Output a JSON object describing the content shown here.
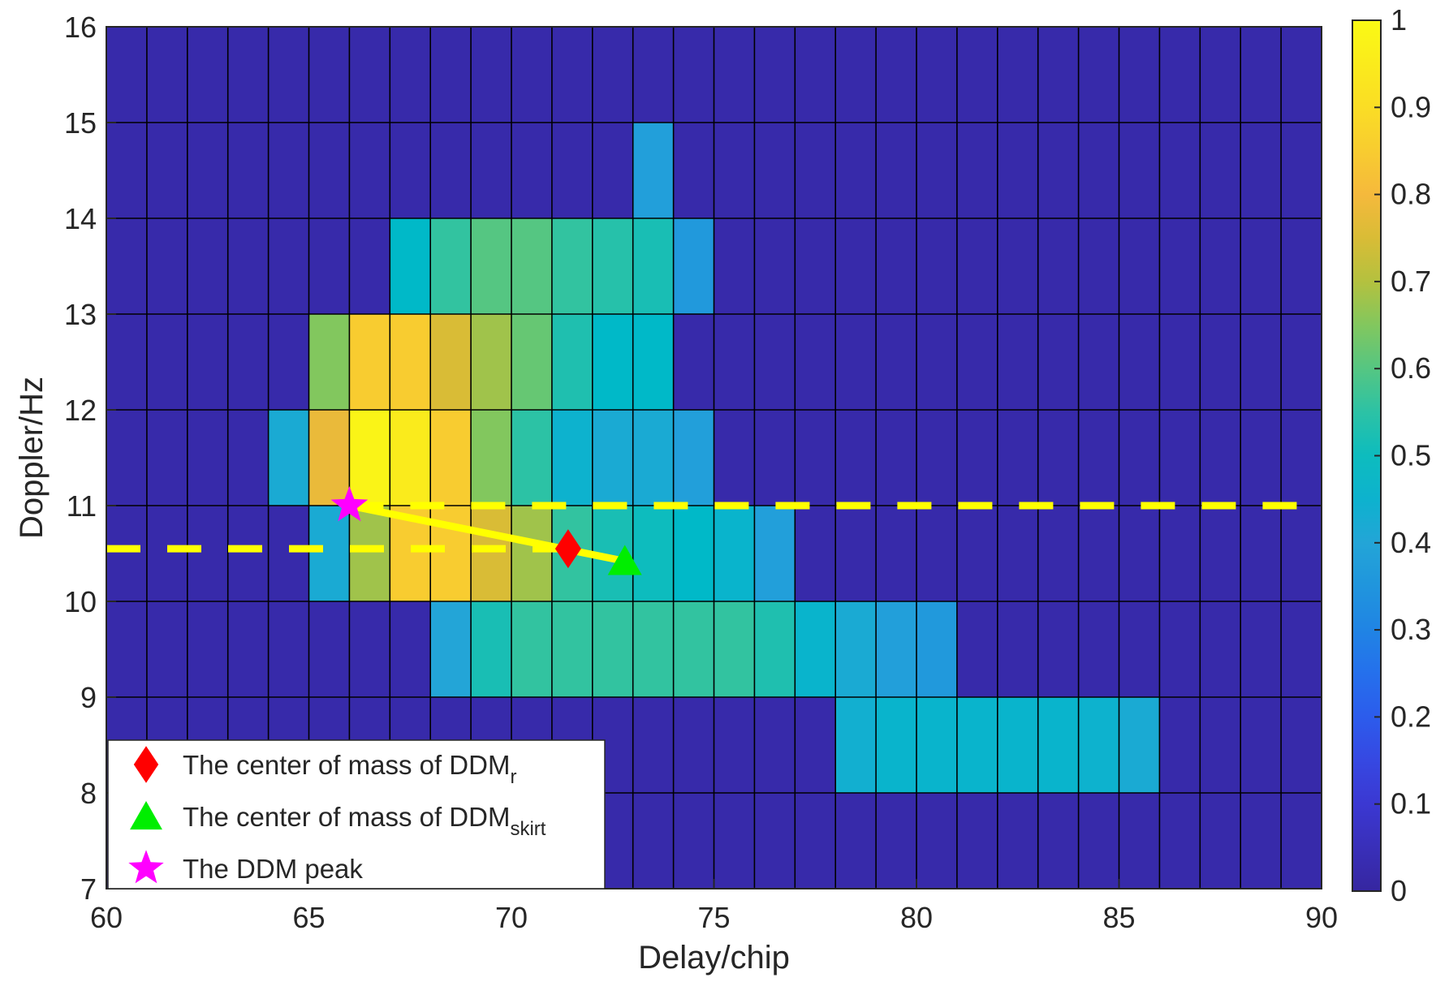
{
  "chart_data": {
    "type": "heatmap",
    "title": "",
    "xlabel": "Delay/chip",
    "ylabel": "Doppler/Hz",
    "xlim": [
      60,
      90
    ],
    "ylim": [
      7,
      16
    ],
    "xticks": [
      "60",
      "65",
      "70",
      "75",
      "80",
      "85",
      "90"
    ],
    "yticks": [
      "7",
      "8",
      "9",
      "10",
      "11",
      "12",
      "13",
      "14",
      "15",
      "16"
    ],
    "colorbar": {
      "range": [
        0,
        1
      ],
      "ticks": [
        "0",
        "0.1",
        "0.2",
        "0.3",
        "0.4",
        "0.5",
        "0.6",
        "0.7",
        "0.8",
        "0.9",
        "1"
      ],
      "colormap": "parula"
    },
    "grid": true,
    "cells": [
      {
        "row": 14,
        "values": {
          "73": 0.38
        }
      },
      {
        "row": 13,
        "values": {
          "67": 0.48,
          "68": 0.56,
          "69": 0.6,
          "70": 0.6,
          "71": 0.56,
          "72": 0.54,
          "73": 0.52,
          "74": 0.36
        }
      },
      {
        "row": 12,
        "values": {
          "65": 0.65,
          "66": 0.85,
          "67": 0.85,
          "68": 0.75,
          "69": 0.68,
          "70": 0.62,
          "71": 0.53,
          "72": 0.48,
          "73": 0.48
        }
      },
      {
        "row": 11,
        "values": {
          "64": 0.42,
          "65": 0.78,
          "66": 0.98,
          "67": 0.95,
          "68": 0.85,
          "69": 0.65,
          "70": 0.55,
          "71": 0.45,
          "72": 0.42,
          "73": 0.42,
          "74": 0.38
        }
      },
      {
        "row": 10,
        "values": {
          "65": 0.42,
          "66": 0.68,
          "67": 0.85,
          "68": 0.85,
          "69": 0.75,
          "70": 0.68,
          "71": 0.56,
          "72": 0.52,
          "73": 0.5,
          "74": 0.48,
          "75": 0.46,
          "76": 0.38
        }
      },
      {
        "row": 9,
        "values": {
          "68": 0.4,
          "69": 0.52,
          "70": 0.56,
          "71": 0.56,
          "72": 0.56,
          "73": 0.56,
          "74": 0.56,
          "75": 0.56,
          "76": 0.53,
          "77": 0.46,
          "78": 0.42,
          "79": 0.38,
          "80": 0.36
        }
      },
      {
        "row": 8,
        "values": {
          "78": 0.44,
          "79": 0.46,
          "80": 0.46,
          "81": 0.46,
          "82": 0.46,
          "83": 0.46,
          "84": 0.45,
          "85": 0.42
        }
      }
    ],
    "background_value": 0.02,
    "markers": [
      {
        "name": "The center of mass of DDM",
        "subscript": "r",
        "shape": "diamond",
        "color": "#ff0000",
        "x": 71.4,
        "y": 10.55
      },
      {
        "name": "The center of mass of DDM",
        "subscript": "skirt",
        "shape": "triangle",
        "color": "#00ee00",
        "x": 72.8,
        "y": 10.42
      },
      {
        "name": "The DDM peak",
        "subscript": "",
        "shape": "star",
        "color": "#ff00ff",
        "x": 66.0,
        "y": 11.0
      }
    ],
    "peak_line": {
      "color": "#ffff00",
      "from": [
        66.0,
        11.0
      ],
      "to": [
        72.8,
        10.42
      ]
    },
    "dashed_lines": [
      {
        "y": 11.0,
        "x_from": 66.0,
        "x_to": 90,
        "color": "#ffff00"
      },
      {
        "y": 10.55,
        "x_from": 60,
        "x_to": 71.4,
        "color": "#ffff00"
      }
    ],
    "legend": {
      "placement": "bottom-left"
    }
  }
}
